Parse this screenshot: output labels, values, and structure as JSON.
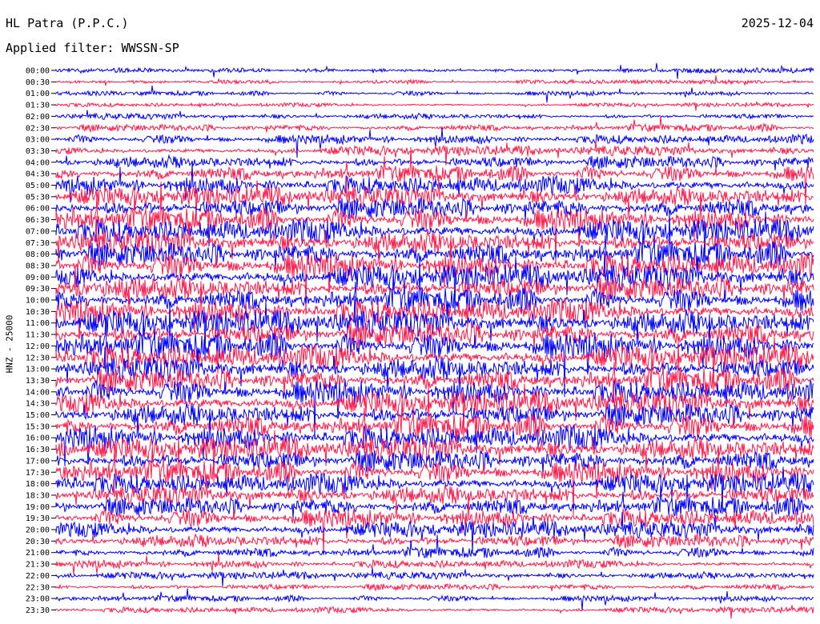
{
  "header": {
    "station": "HL Patra (P.P.C.)",
    "date": "2025-12-04",
    "filter": "Applied filter: WWSSN-SP"
  },
  "colors": {
    "even_trace": "#0000ff",
    "odd_trace": "#ff1a4a",
    "background": "#ffffff"
  },
  "chart_data": {
    "type": "line",
    "title": "HL Patra (P.P.C.)",
    "ylabel": "HNZ - 25000",
    "xlabel": "",
    "grid": false,
    "row_interval_minutes": 30,
    "row_labels": [
      "00:00",
      "00:30",
      "01:00",
      "01:30",
      "02:00",
      "02:30",
      "03:00",
      "03:30",
      "04:00",
      "04:30",
      "05:00",
      "05:30",
      "06:00",
      "06:30",
      "07:00",
      "07:30",
      "08:00",
      "08:30",
      "09:00",
      "09:30",
      "10:00",
      "10:30",
      "11:00",
      "11:30",
      "12:00",
      "12:30",
      "13:00",
      "13:30",
      "14:00",
      "14:30",
      "15:00",
      "15:30",
      "16:00",
      "16:30",
      "17:00",
      "17:30",
      "18:00",
      "18:30",
      "19:00",
      "19:30",
      "20:00",
      "20:30",
      "21:00",
      "21:30",
      "22:00",
      "22:30",
      "23:00",
      "23:30"
    ],
    "relative_amplitude": [
      0.15,
      0.12,
      0.14,
      0.12,
      0.18,
      0.22,
      0.28,
      0.3,
      0.4,
      0.48,
      0.55,
      0.6,
      0.65,
      0.68,
      0.72,
      0.72,
      0.75,
      0.75,
      0.75,
      0.72,
      0.72,
      0.75,
      0.78,
      0.75,
      0.78,
      0.75,
      0.75,
      0.72,
      0.72,
      0.72,
      0.72,
      0.72,
      0.72,
      0.7,
      0.68,
      0.65,
      0.62,
      0.6,
      0.58,
      0.55,
      0.5,
      0.42,
      0.32,
      0.25,
      0.22,
      0.2,
      0.18,
      0.18
    ]
  }
}
